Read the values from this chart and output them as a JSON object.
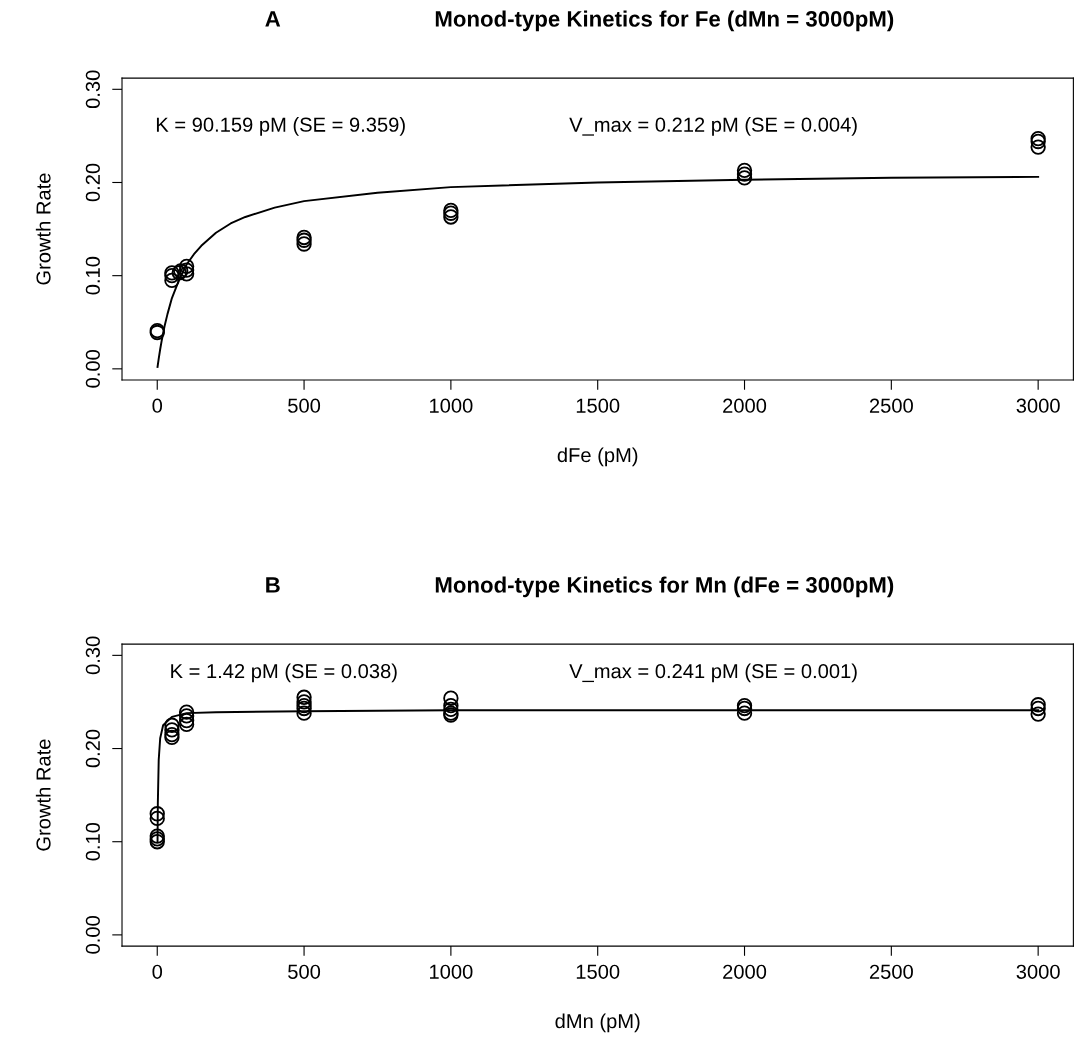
{
  "chart_data": [
    {
      "type": "scatter",
      "title": "Monod-type Kinetics for Fe (dMn = 3000pM)",
      "xlabel": "dFe (pM)",
      "ylabel": "Growth Rate",
      "annotations": [
        "A",
        "K = 90.159 pM (SE = 9.359)",
        "V_max = 0.212 pM (SE = 0.004)"
      ],
      "xlim": [
        -120,
        3120
      ],
      "ylim": [
        -0.012,
        0.312
      ],
      "xticks": [
        0,
        500,
        1000,
        1500,
        2000,
        2500,
        3000
      ],
      "yticks": [
        {
          "value": 0,
          "label": "0.00"
        },
        {
          "value": 0.1,
          "label": "0.10"
        },
        {
          "value": 0.2,
          "label": "0.20"
        },
        {
          "value": 0.3,
          "label": "0.30"
        }
      ],
      "grid": false,
      "legend": false,
      "series": [
        {
          "marker": "circle",
          "color": "#000000",
          "x": [
            0,
            0,
            50,
            50,
            50,
            75,
            80,
            100,
            100,
            100,
            500,
            500,
            500,
            1000,
            1000,
            1000,
            2000,
            2000,
            2000,
            3000,
            3000,
            3000
          ],
          "values": [
            0.039,
            0.041,
            0.103,
            0.1,
            0.095,
            0.103,
            0.105,
            0.11,
            0.106,
            0.102,
            0.141,
            0.138,
            0.134,
            0.17,
            0.167,
            0.163,
            0.213,
            0.209,
            0.205,
            0.247,
            0.244,
            0.238
          ]
        },
        {
          "type": "line",
          "marker": "none",
          "line_style": "solid",
          "color": "#000000",
          "x": [
            1,
            5,
            10,
            15,
            25,
            35,
            50,
            75,
            100,
            125,
            150,
            200,
            250,
            300,
            400,
            500,
            750,
            1000,
            1500,
            2000,
            2500,
            3000
          ],
          "values": [
            0.002,
            0.011,
            0.021,
            0.03,
            0.046,
            0.059,
            0.076,
            0.096,
            0.112,
            0.123,
            0.132,
            0.146,
            0.156,
            0.163,
            0.173,
            0.18,
            0.189,
            0.195,
            0.2,
            0.203,
            0.205,
            0.206
          ]
        }
      ]
    },
    {
      "type": "scatter",
      "title": "Monod-type Kinetics for Mn (dFe = 3000pM)",
      "xlabel": "dMn (pM)",
      "ylabel": "Growth Rate",
      "annotations": [
        "B",
        "K = 1.42 pM (SE = 0.038)",
        "V_max = 0.241 pM (SE = 0.001)"
      ],
      "xlim": [
        -120,
        3120
      ],
      "ylim": [
        -0.012,
        0.312
      ],
      "xticks": [
        0,
        500,
        1000,
        1500,
        2000,
        2500,
        3000
      ],
      "yticks": [
        {
          "value": 0,
          "label": "0.00"
        },
        {
          "value": 0.1,
          "label": "0.10"
        },
        {
          "value": 0.2,
          "label": "0.20"
        },
        {
          "value": 0.3,
          "label": "0.30"
        }
      ],
      "grid": false,
      "legend": false,
      "series": [
        {
          "marker": "circle",
          "color": "#000000",
          "x": [
            0,
            0,
            0,
            0,
            0,
            50,
            50,
            50,
            50,
            100,
            100,
            100,
            100,
            500,
            500,
            500,
            500,
            500,
            1000,
            1000,
            1000,
            1000,
            1000,
            2000,
            2000,
            2000,
            3000,
            3000,
            3000
          ],
          "values": [
            0.13,
            0.125,
            0.106,
            0.103,
            0.1,
            0.225,
            0.22,
            0.215,
            0.212,
            0.239,
            0.235,
            0.23,
            0.226,
            0.255,
            0.25,
            0.246,
            0.243,
            0.238,
            0.254,
            0.246,
            0.242,
            0.238,
            0.236,
            0.246,
            0.243,
            0.238,
            0.247,
            0.243,
            0.237
          ]
        },
        {
          "type": "line",
          "marker": "none",
          "line_style": "solid",
          "color": "#000000",
          "x": [
            1,
            2,
            5,
            10,
            20,
            50,
            100,
            200,
            500,
            1000,
            2000,
            3000
          ],
          "values": [
            0.1,
            0.141,
            0.188,
            0.211,
            0.225,
            0.234,
            0.238,
            0.239,
            0.24,
            0.241,
            0.241,
            0.241
          ]
        }
      ]
    }
  ]
}
